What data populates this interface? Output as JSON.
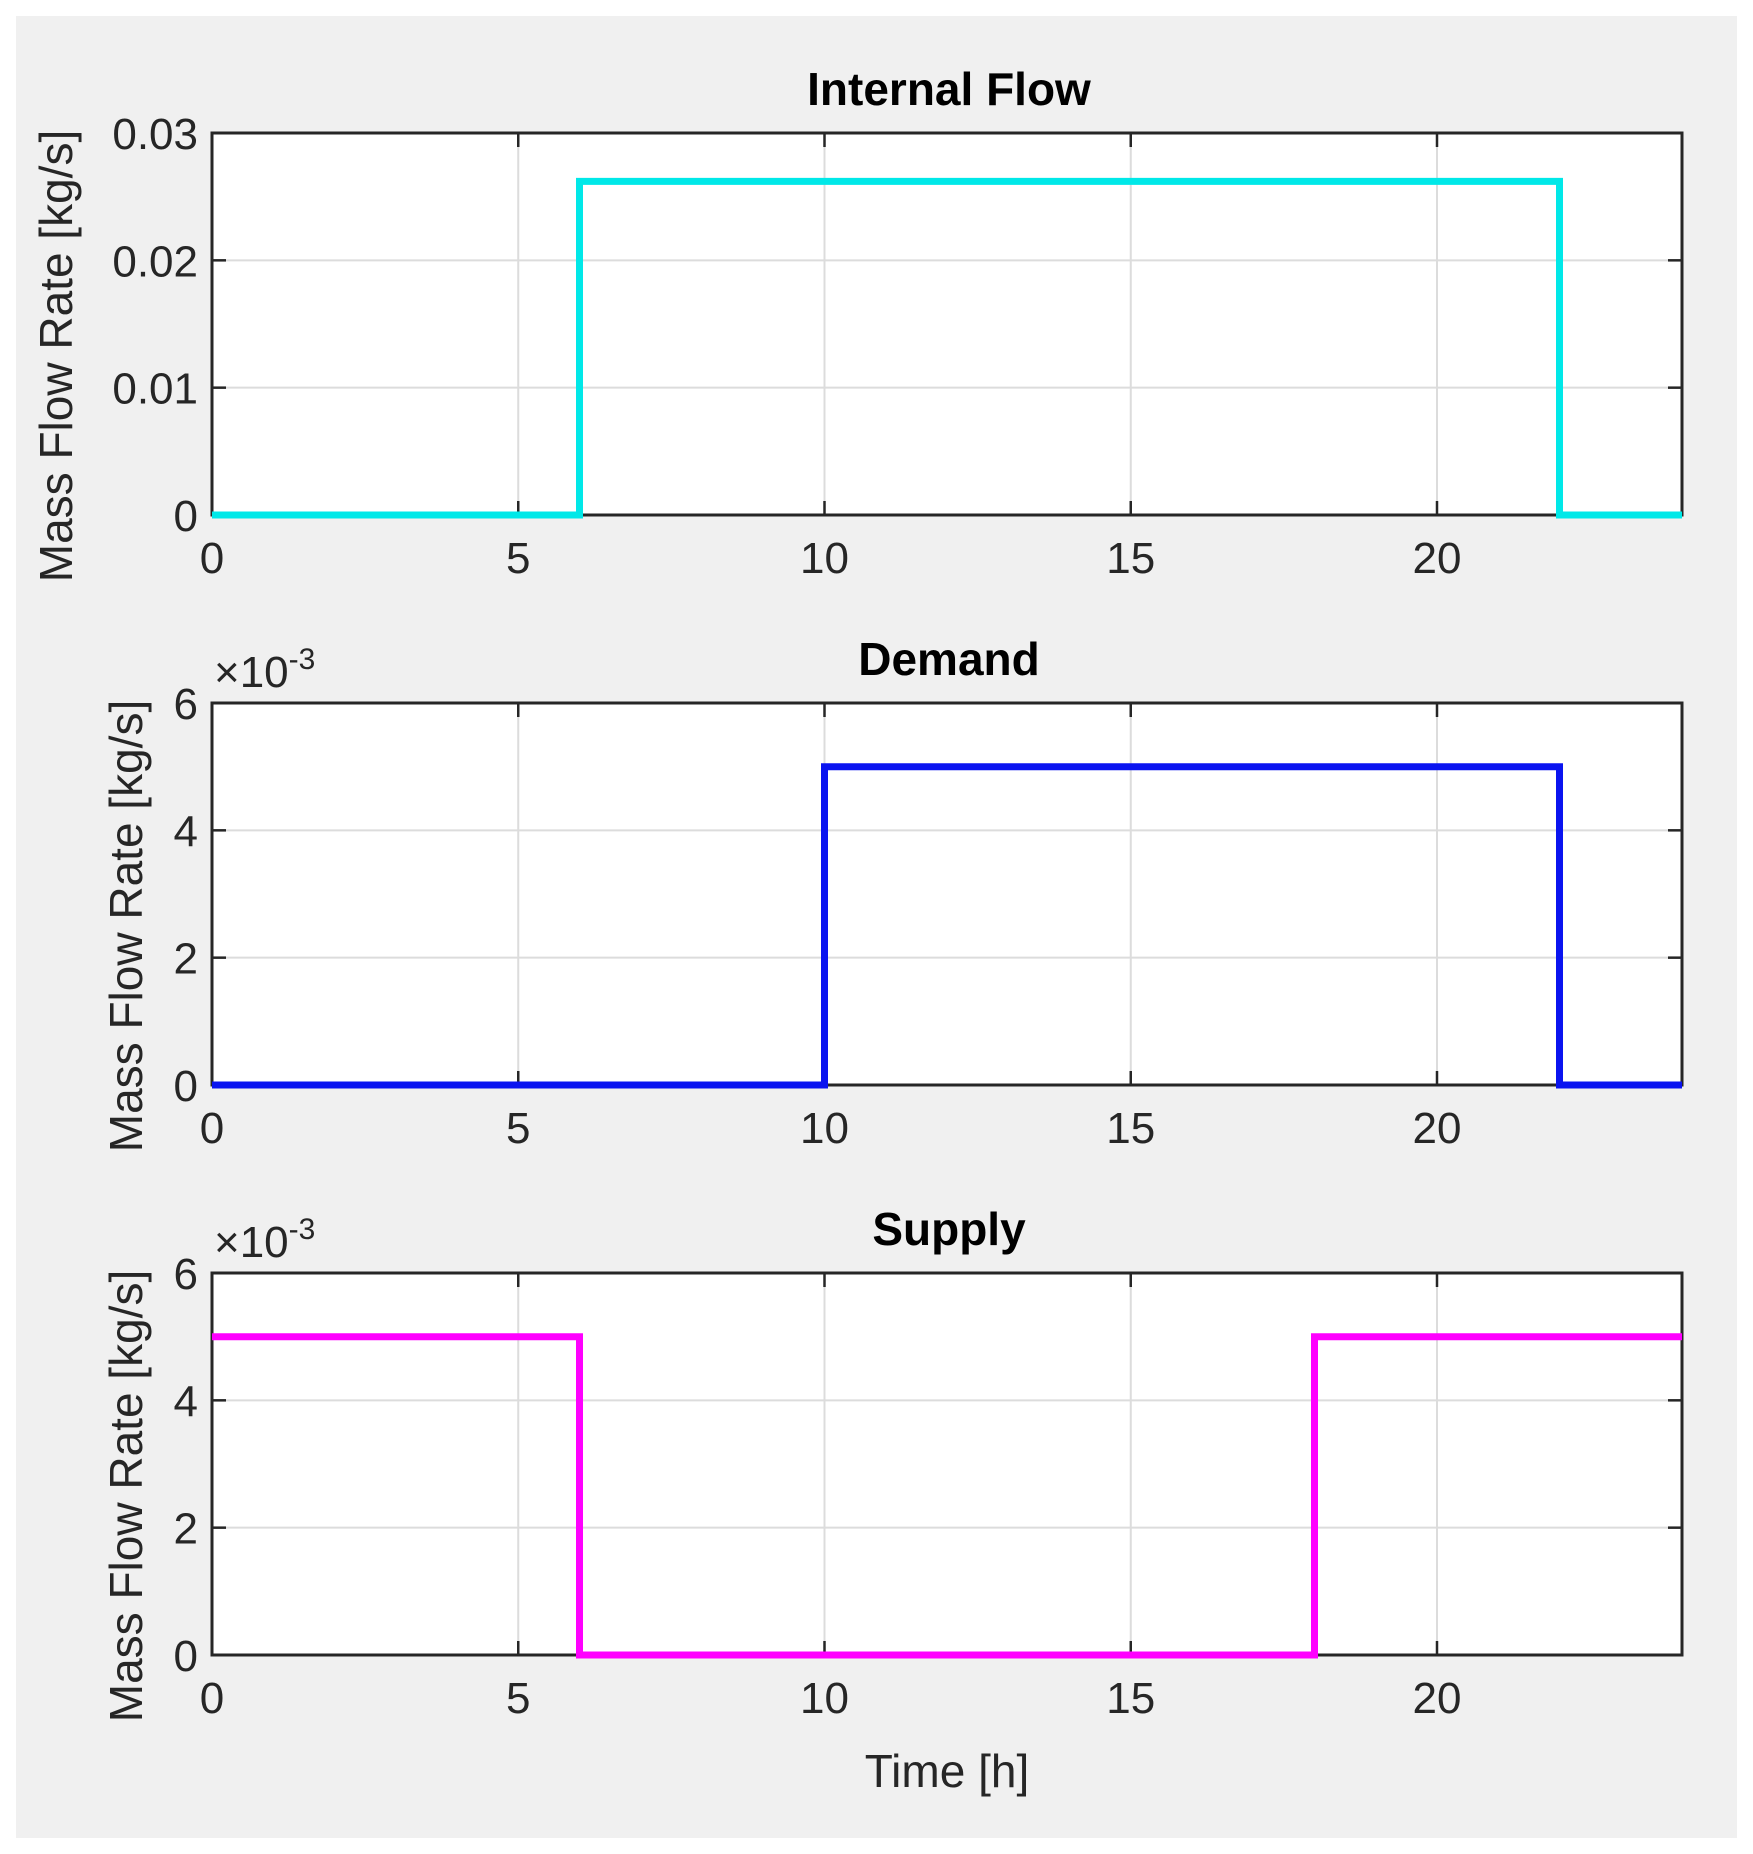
{
  "figure": {
    "background": "#f0f0f0"
  },
  "chart_data": [
    {
      "type": "line",
      "title": "Internal Flow",
      "xlabel": "",
      "ylabel": "Mass Flow Rate [kg/s]",
      "xlim": [
        0,
        24
      ],
      "ylim": [
        0,
        0.03
      ],
      "xticks": [
        0,
        5,
        10,
        15,
        20
      ],
      "xtick_labels": [
        "0",
        "5",
        "10",
        "15",
        "20"
      ],
      "yticks": [
        0,
        0.01,
        0.02,
        0.03
      ],
      "ytick_labels": [
        "0",
        "0.01",
        "0.02",
        "0.03"
      ],
      "exponent_base": "",
      "exponent_power": "",
      "grid": true,
      "series": [
        {
          "color": "#00e8e8",
          "x": [
            0,
            6,
            6,
            22,
            22,
            24
          ],
          "y": [
            0,
            0,
            0.0262,
            0.0262,
            0,
            0
          ]
        }
      ]
    },
    {
      "type": "line",
      "title": "Demand",
      "xlabel": "",
      "ylabel": "Mass Flow Rate [kg/s]",
      "xlim": [
        0,
        24
      ],
      "ylim": [
        0,
        0.006
      ],
      "xticks": [
        0,
        5,
        10,
        15,
        20
      ],
      "xtick_labels": [
        "0",
        "5",
        "10",
        "15",
        "20"
      ],
      "yticks": [
        0,
        0.002,
        0.004,
        0.006
      ],
      "ytick_labels": [
        "0",
        "2",
        "4",
        "6"
      ],
      "exponent_base": "×10",
      "exponent_power": "-3",
      "grid": true,
      "series": [
        {
          "color": "#0a14f0",
          "x": [
            0,
            10,
            10,
            22,
            22,
            24
          ],
          "y": [
            0,
            0,
            0.005,
            0.005,
            0,
            0
          ]
        }
      ]
    },
    {
      "type": "line",
      "title": "Supply",
      "xlabel": "Time [h]",
      "ylabel": "Mass Flow Rate [kg/s]",
      "xlim": [
        0,
        24
      ],
      "ylim": [
        0,
        0.006
      ],
      "xticks": [
        0,
        5,
        10,
        15,
        20
      ],
      "xtick_labels": [
        "0",
        "5",
        "10",
        "15",
        "20"
      ],
      "yticks": [
        0,
        0.002,
        0.004,
        0.006
      ],
      "ytick_labels": [
        "0",
        "2",
        "4",
        "6"
      ],
      "exponent_base": "×10",
      "exponent_power": "-3",
      "grid": true,
      "series": [
        {
          "color": "#ff00ff",
          "x": [
            0,
            6,
            6,
            18,
            18,
            24
          ],
          "y": [
            0.005,
            0.005,
            0,
            0,
            0.005,
            0.005
          ]
        }
      ]
    }
  ]
}
